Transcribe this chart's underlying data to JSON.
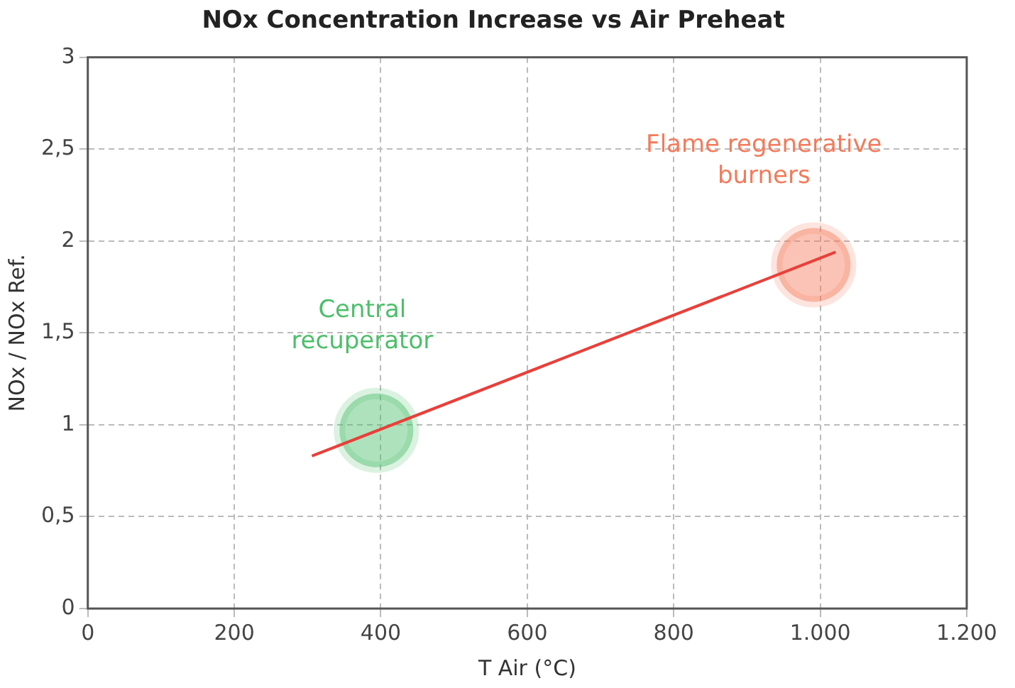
{
  "chart_data": {
    "type": "line",
    "title": "NOx Concentration Increase vs Air Preheat",
    "xlabel": "T Air (°C)",
    "ylabel": "NOx / NOx Ref.",
    "series": [
      {
        "color": "#e8403a",
        "x": [
          306,
          1021
        ],
        "values": [
          0.83,
          1.94
        ]
      },
      {
        "type": "scatter",
        "colors": [
          "#4cbf6a",
          "#f47a5a"
        ],
        "x": [
          394,
          991
        ],
        "values": [
          0.97,
          1.87
        ]
      }
    ],
    "annotations": [
      "Central\nrecuperator",
      "Flame regenerative\nburners"
    ],
    "xlim": [
      0,
      1200
    ],
    "xticks": [
      0,
      200,
      400,
      600,
      800,
      {
        "value": 1000,
        "label": "1.000"
      },
      {
        "value": 1200,
        "label": "1.200"
      }
    ],
    "ylim": [
      0,
      3
    ],
    "yticks": [
      0,
      {
        "value": 0.5,
        "label": "0,5"
      },
      1,
      {
        "value": 1.5,
        "label": "1,5"
      },
      2,
      {
        "value": 2.5,
        "label": "2,5"
      },
      3
    ],
    "grid": true,
    "legend": false,
    "line_style": "solid"
  }
}
